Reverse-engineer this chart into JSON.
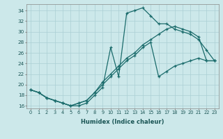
{
  "xlabel": "Humidex (Indice chaleur)",
  "bg_color": "#cce8ea",
  "grid_color": "#aacfd4",
  "line_color": "#1a6b6b",
  "xlim": [
    -0.5,
    23.5
  ],
  "ylim": [
    15.5,
    35.2
  ],
  "yticks": [
    16,
    18,
    20,
    22,
    24,
    26,
    28,
    30,
    32,
    34
  ],
  "xticks": [
    0,
    1,
    2,
    3,
    4,
    5,
    6,
    7,
    8,
    9,
    10,
    11,
    12,
    13,
    14,
    15,
    16,
    17,
    18,
    19,
    20,
    21,
    22,
    23
  ],
  "lines": [
    [
      19.0,
      18.5,
      17.5,
      17.0,
      16.5,
      16.0,
      16.0,
      16.5,
      18.0,
      19.5,
      27.0,
      21.5,
      33.5,
      34.0,
      34.5,
      33.0,
      31.5,
      31.5,
      30.5,
      30.0,
      29.5,
      28.5,
      26.5,
      24.5
    ],
    [
      19.0,
      18.5,
      17.5,
      17.0,
      16.5,
      16.0,
      16.5,
      17.0,
      18.5,
      20.5,
      22.0,
      23.5,
      25.0,
      26.0,
      27.5,
      28.5,
      29.5,
      30.5,
      31.0,
      30.5,
      30.0,
      29.0,
      24.5,
      24.5
    ],
    [
      19.0,
      18.5,
      17.5,
      17.0,
      16.5,
      16.0,
      16.5,
      17.0,
      18.5,
      20.0,
      21.5,
      23.0,
      24.5,
      25.5,
      27.0,
      28.0,
      21.5,
      22.5,
      23.5,
      24.0,
      24.5,
      25.0,
      24.5,
      24.5
    ]
  ]
}
